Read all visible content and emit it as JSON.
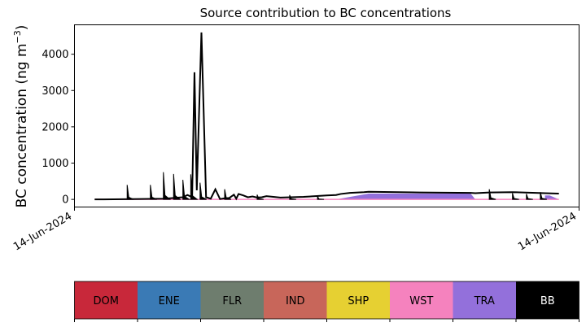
{
  "chart_data": {
    "type": "area",
    "title": "Source contribution to BC concentrations",
    "ylabel_prefix": "BC concentration (ng m",
    "ylabel_sup": "−3",
    "ylabel_suffix": ")",
    "xlabel": "",
    "x_ticks": [
      "14-Jun-2024",
      "14-Jun-2024"
    ],
    "y_ticks": [
      0,
      1000,
      2000,
      3000,
      4000
    ],
    "ylim": [
      -210,
      4810
    ],
    "xlim": [
      0,
      1
    ],
    "grid": false,
    "series": [
      {
        "name": "TRA",
        "description_values": "plateau segment",
        "x": [
          0.0,
          0.52,
          0.59,
          0.81,
          0.82,
          0.97,
          0.97,
          0.98,
          1.0
        ],
        "values": [
          0,
          0,
          160,
          160,
          0,
          0,
          110,
          110,
          0
        ]
      }
    ],
    "total_line": {
      "x": [
        0.0,
        0.02,
        0.1,
        0.15,
        0.17,
        0.19,
        0.2,
        0.21,
        0.215,
        0.22,
        0.23,
        0.24,
        0.25,
        0.26,
        0.27,
        0.28,
        0.29,
        0.3,
        0.305,
        0.31,
        0.32,
        0.33,
        0.34,
        0.35,
        0.36,
        0.37,
        0.4,
        0.45,
        0.5,
        0.52,
        0.53,
        0.55,
        0.58,
        0.59,
        0.7,
        0.81,
        0.82,
        0.85,
        0.9,
        0.95,
        0.97,
        1.0
      ],
      "values": [
        0,
        0,
        10,
        20,
        40,
        60,
        120,
        60,
        3500,
        250,
        4600,
        60,
        20,
        280,
        10,
        30,
        40,
        130,
        20,
        150,
        110,
        60,
        80,
        50,
        60,
        90,
        50,
        70,
        110,
        120,
        150,
        180,
        200,
        210,
        190,
        180,
        170,
        190,
        200,
        180,
        170,
        160
      ]
    },
    "spikes": {
      "x": [
        0.07,
        0.12,
        0.148,
        0.17,
        0.19,
        0.207,
        0.227,
        0.28,
        0.35,
        0.42,
        0.48,
        0.85,
        0.9,
        0.93,
        0.96
      ],
      "values": [
        400,
        400,
        750,
        700,
        540,
        690,
        460,
        280,
        130,
        120,
        80,
        280,
        170,
        150,
        200
      ]
    },
    "legend": [
      {
        "label": "DOM",
        "color": "#c8283a",
        "text_color": "#000000"
      },
      {
        "label": "ENE",
        "color": "#3a7ab5",
        "text_color": "#000000"
      },
      {
        "label": "FLR",
        "color": "#6e7d6e",
        "text_color": "#000000"
      },
      {
        "label": "IND",
        "color": "#c8665a",
        "text_color": "#000000"
      },
      {
        "label": "SHP",
        "color": "#e6d032",
        "text_color": "#000000"
      },
      {
        "label": "WST",
        "color": "#f582be",
        "text_color": "#000000"
      },
      {
        "label": "TRA",
        "color": "#9370db",
        "text_color": "#000000"
      },
      {
        "label": "BB",
        "color": "#000000",
        "text_color": "#ffffff"
      }
    ]
  }
}
